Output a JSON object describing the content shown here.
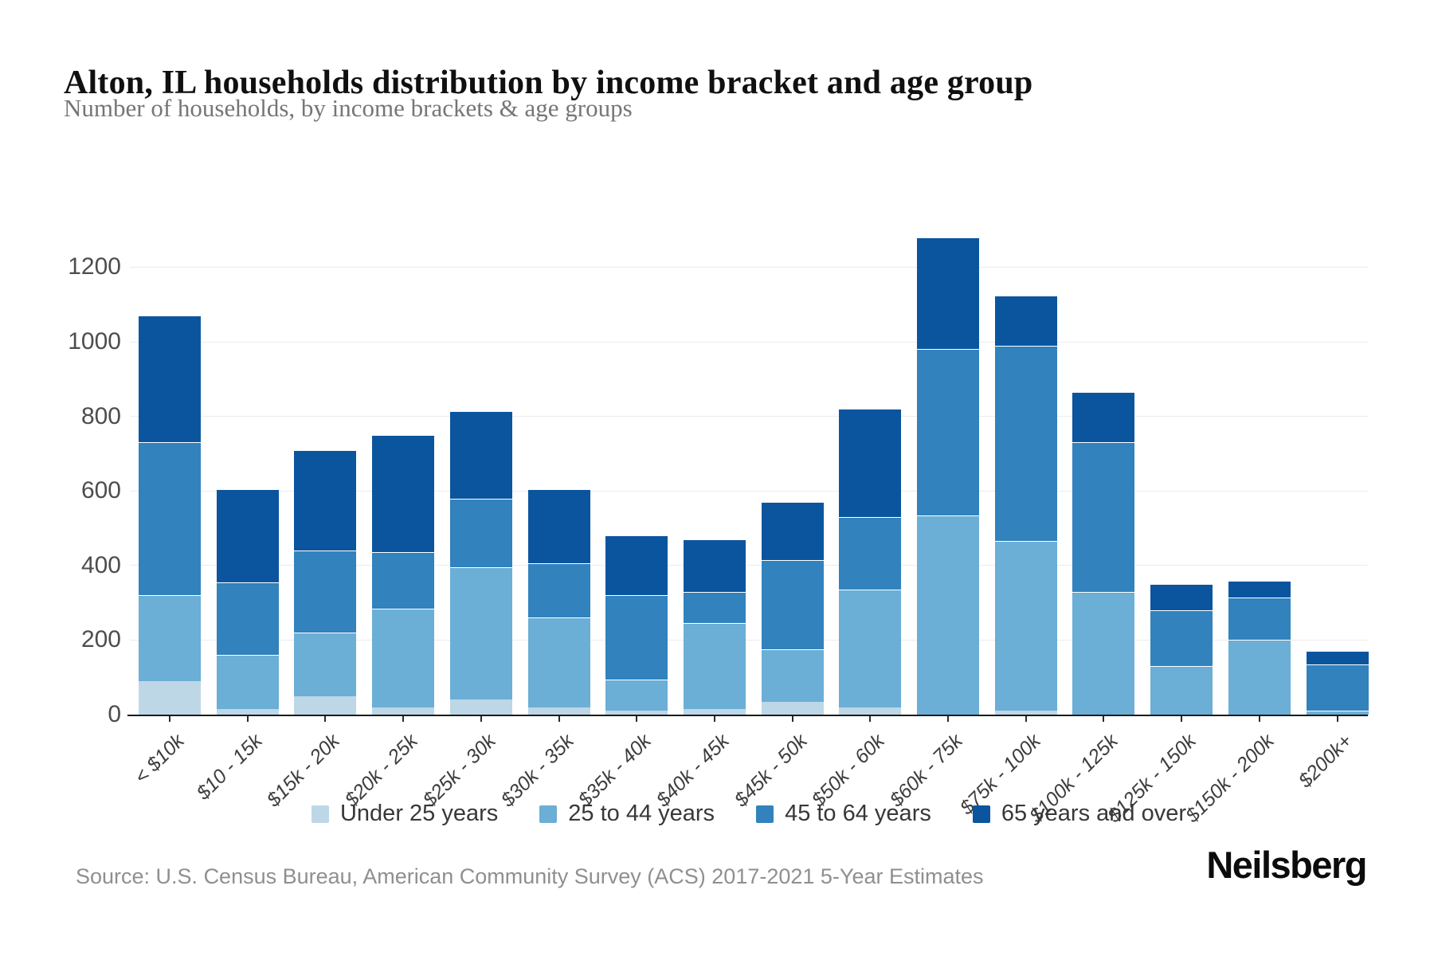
{
  "header": {
    "title": "Alton, IL households distribution by income bracket and age group",
    "subtitle": "Number of households, by income brackets & age groups"
  },
  "chart_data": {
    "type": "bar",
    "stacked": true,
    "title": "Alton, IL households distribution by income bracket and age group",
    "xlabel": "",
    "ylabel": "",
    "categories": [
      "< $10k",
      "$10 - 15k",
      "$15k - 20k",
      "$20k - 25k",
      "$25k - 30k",
      "$30k - 35k",
      "$35k - 40k",
      "$40k - 45k",
      "$45k - 50k",
      "$50k - 60k",
      "$60k - 75k",
      "$75k - 100k",
      "$100k - 125k",
      "$125k - 150k",
      "$150k - 200k",
      "$200k+"
    ],
    "series": [
      {
        "name": "Under 25 years",
        "color": "#bdd7e7",
        "values": [
          90,
          15,
          50,
          20,
          40,
          20,
          10,
          15,
          35,
          20,
          0,
          10,
          0,
          0,
          0,
          0
        ]
      },
      {
        "name": "25 to 44 years",
        "color": "#6baed6",
        "values": [
          230,
          145,
          170,
          265,
          355,
          240,
          85,
          230,
          140,
          315,
          535,
          455,
          330,
          130,
          200,
          10
        ]
      },
      {
        "name": "45 to 64 years",
        "color": "#3182bd",
        "values": [
          410,
          195,
          220,
          150,
          185,
          145,
          225,
          85,
          240,
          195,
          445,
          525,
          400,
          150,
          115,
          125
        ]
      },
      {
        "name": "65 years and over",
        "color": "#0b559f",
        "values": [
          340,
          250,
          270,
          315,
          235,
          200,
          160,
          140,
          155,
          290,
          300,
          135,
          135,
          70,
          45,
          35
        ]
      }
    ],
    "totals": [
      1070,
      605,
      710,
      750,
      815,
      605,
      480,
      470,
      570,
      820,
      1280,
      1125,
      865,
      350,
      360,
      170
    ],
    "ylim": [
      0,
      1200
    ],
    "yticks": [
      0,
      200,
      400,
      600,
      800,
      1000,
      1200
    ],
    "grid": true,
    "legend_position": "bottom"
  },
  "footer": {
    "source": "Source: U.S. Census Bureau, American Community Survey (ACS) 2017-2021 5-Year Estimates",
    "logo": "Neilsberg"
  }
}
